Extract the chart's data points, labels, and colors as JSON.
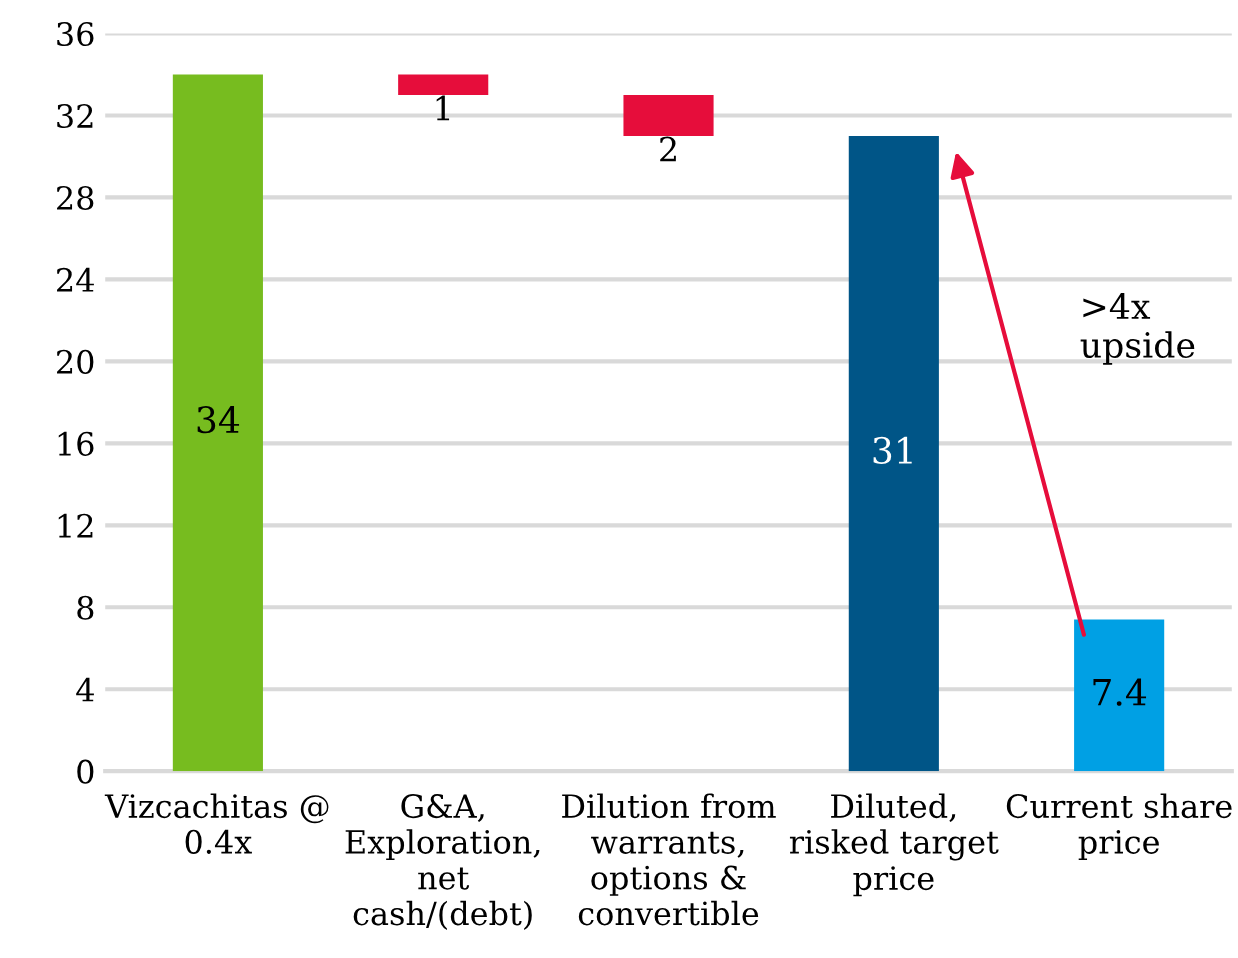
{
  "chart_data": {
    "type": "bar",
    "categories": [
      "Vizcachitas @\n0.4x",
      "G&A,\nExploration,\nnet\ncash/(debt)",
      "Dilution from\nwarrants,\noptions &\nconvertible",
      "Diluted,\nrisked target\nprice",
      "Current share\nprice"
    ],
    "values": [
      34,
      1,
      2,
      31,
      7.4
    ],
    "base": [
      0,
      33,
      31,
      0,
      0
    ],
    "colors": [
      "#77bc1f",
      "#e60d3b",
      "#e60d3b",
      "#005587",
      "#00a0e4"
    ],
    "data_labels": true,
    "ylim": [
      0,
      36
    ],
    "yticks": [
      0,
      4,
      8,
      12,
      16,
      20,
      24,
      28,
      32,
      36
    ],
    "grid": "y",
    "annotations": [
      ">4x\nupside"
    ]
  }
}
